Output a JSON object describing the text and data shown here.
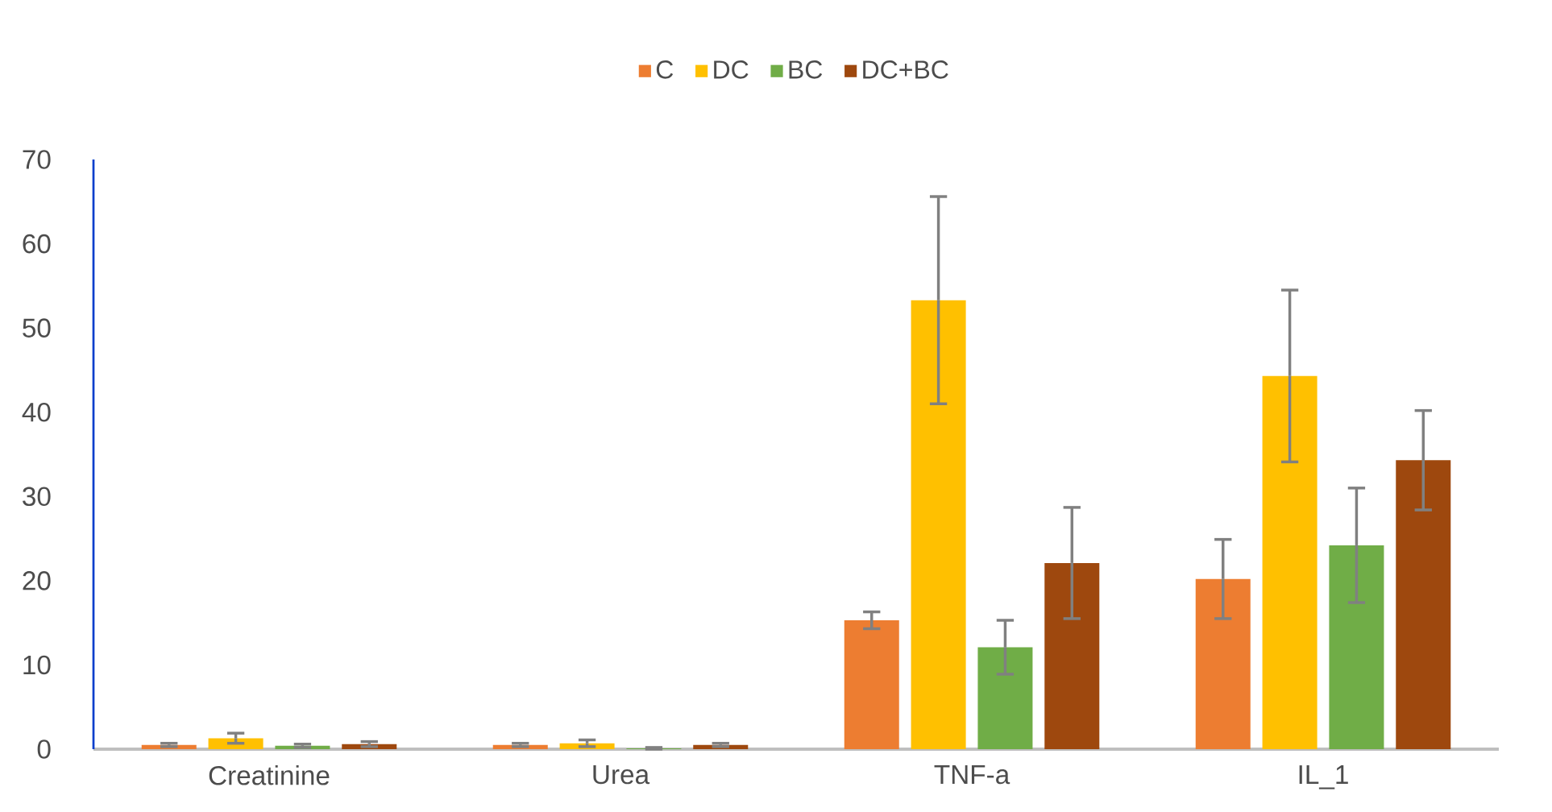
{
  "chart_data": {
    "type": "bar",
    "categories": [
      "Creatinine",
      "Urea",
      "TNF-a",
      "IL_1"
    ],
    "ylim": [
      0,
      70
    ],
    "yticks": [
      0,
      10,
      20,
      30,
      40,
      50,
      60,
      70
    ],
    "legend": "top",
    "series": [
      {
        "name": "C",
        "color": "#ED7D31",
        "values": [
          0.5,
          0.5,
          15.3,
          20.2
        ],
        "errors": [
          0.2,
          0.2,
          1.0,
          4.7
        ]
      },
      {
        "name": "DC",
        "color": "#FFC000",
        "values": [
          1.3,
          0.7,
          53.3,
          44.3
        ],
        "errors": [
          0.6,
          0.4,
          12.3,
          10.2
        ]
      },
      {
        "name": "BC",
        "color": "#70AD47",
        "values": [
          0.4,
          0.1,
          12.1,
          24.2
        ],
        "errors": [
          0.2,
          0.1,
          3.2,
          6.8
        ]
      },
      {
        "name": "DC+BC",
        "color": "#9E480E",
        "values": [
          0.6,
          0.5,
          22.1,
          34.3
        ],
        "errors": [
          0.3,
          0.2,
          6.6,
          5.9
        ]
      }
    ]
  }
}
